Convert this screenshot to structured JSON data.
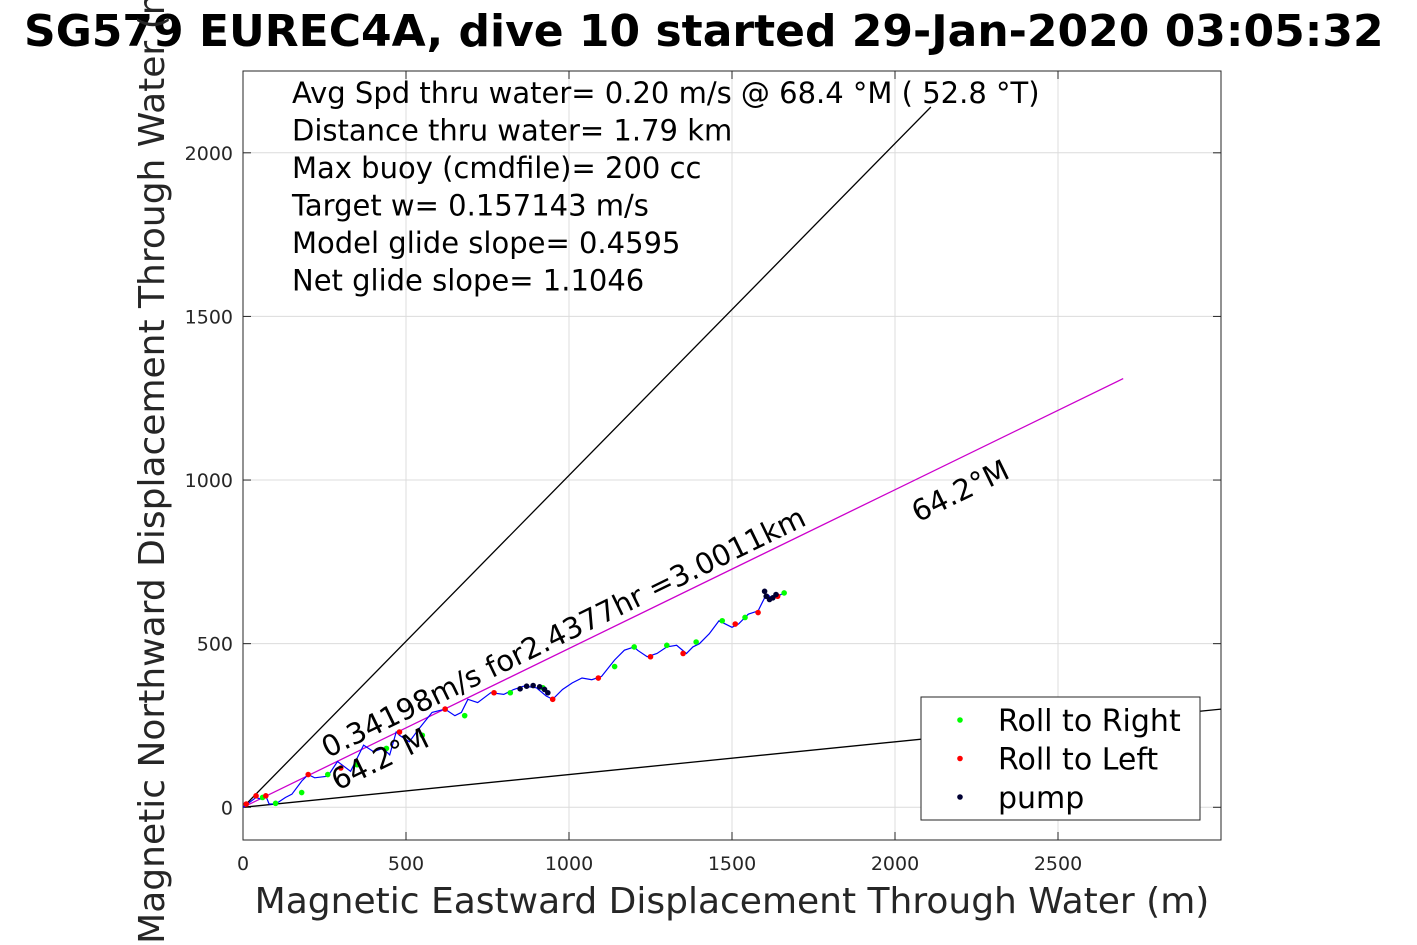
{
  "chart_data": {
    "type": "line",
    "title": "SG579 EUREC4A, dive 10 started 29-Jan-2020 03:05:32",
    "xlabel": "Magnetic Eastward Displacement Through Water (m)",
    "ylabel": "Magnetic Northward Displacement Through Water (m)",
    "xlim": [
      0,
      3000
    ],
    "ylim": [
      -100,
      2250
    ],
    "x_ticks": [
      0,
      500,
      1000,
      1500,
      2000,
      2500
    ],
    "y_ticks": [
      0,
      500,
      1000,
      1500,
      2000
    ],
    "grid": true,
    "legend_position": "bottom-right",
    "info_lines": [
      "Avg Spd thru water=  0.20 m/s @  68.4 °M ( 52.8 °T)",
      "Distance thru water=  1.79 km",
      "Max buoy (cmdfile)= 200 cc",
      "Target w= 0.157143 m/s",
      "Model glide slope= 0.4595",
      "Net glide slope= 1.1046"
    ],
    "annotations": [
      {
        "text": "0.34198m/s for2.4377hr =3.0011km",
        "x": 260,
        "y": 150
      },
      {
        "text": "64.2°M",
        "x": 290,
        "y": 50
      },
      {
        "text": "64.2°M",
        "x": 2070,
        "y": 870
      }
    ],
    "reference_lines": [
      {
        "name": "upper-bound",
        "color": "#000000",
        "x": [
          0,
          2110
        ],
        "y": [
          0,
          2140
        ]
      },
      {
        "name": "lower-bound",
        "color": "#000000",
        "x": [
          0,
          3000
        ],
        "y": [
          0,
          300
        ]
      },
      {
        "name": "heading-line",
        "color": "#cc00cc",
        "x": [
          0,
          2700
        ],
        "y": [
          0,
          1310
        ]
      }
    ],
    "series": [
      {
        "name": "",
        "color": "#0000ff",
        "x": [
          0,
          20,
          40,
          55,
          70,
          80,
          100,
          130,
          150,
          180,
          200,
          220,
          260,
          290,
          330,
          370,
          400,
          430,
          450,
          470,
          480,
          510,
          540,
          580,
          620,
          650,
          670,
          690,
          720,
          760,
          800,
          830,
          860,
          880,
          900,
          930,
          950,
          980,
          1010,
          1040,
          1070,
          1100,
          1140,
          1170,
          1200,
          1210,
          1240,
          1270,
          1300,
          1330,
          1360,
          1380,
          1400,
          1430,
          1460,
          1500,
          1520,
          1550,
          1580,
          1600,
          1610,
          1620,
          1640,
          1660
        ],
        "y": [
          0,
          15,
          30,
          25,
          35,
          10,
          10,
          30,
          40,
          80,
          100,
          90,
          95,
          140,
          110,
          190,
          170,
          180,
          160,
          230,
          220,
          200,
          240,
          290,
          300,
          280,
          290,
          330,
          320,
          350,
          345,
          360,
          370,
          368,
          365,
          340,
          330,
          360,
          380,
          395,
          390,
          400,
          450,
          480,
          490,
          480,
          460,
          470,
          490,
          495,
          470,
          490,
          500,
          530,
          570,
          550,
          560,
          590,
          600,
          640,
          650,
          640,
          645,
          655
        ]
      },
      {
        "name": "Roll to Right",
        "color": "#00ff00",
        "x": [
          60,
          100,
          180,
          260,
          350,
          440,
          550,
          680,
          820,
          920,
          1140,
          1200,
          1300,
          1390,
          1470,
          1540,
          1660
        ],
        "y": [
          30,
          12,
          45,
          100,
          130,
          180,
          220,
          280,
          350,
          365,
          430,
          490,
          495,
          505,
          570,
          580,
          655
        ]
      },
      {
        "name": "Roll to Left",
        "color": "#ff0000",
        "x": [
          10,
          40,
          70,
          200,
          300,
          480,
          620,
          770,
          950,
          1090,
          1250,
          1350,
          1510,
          1580,
          1640
        ],
        "y": [
          10,
          35,
          35,
          100,
          120,
          230,
          300,
          350,
          330,
          395,
          460,
          470,
          560,
          595,
          645
        ]
      },
      {
        "name": "pump",
        "color": "#000033",
        "x": [
          850,
          870,
          890,
          910,
          925,
          935,
          1600,
          1605,
          1615,
          1625,
          1635
        ],
        "y": [
          362,
          370,
          372,
          368,
          360,
          350,
          660,
          645,
          635,
          640,
          650
        ]
      }
    ]
  }
}
